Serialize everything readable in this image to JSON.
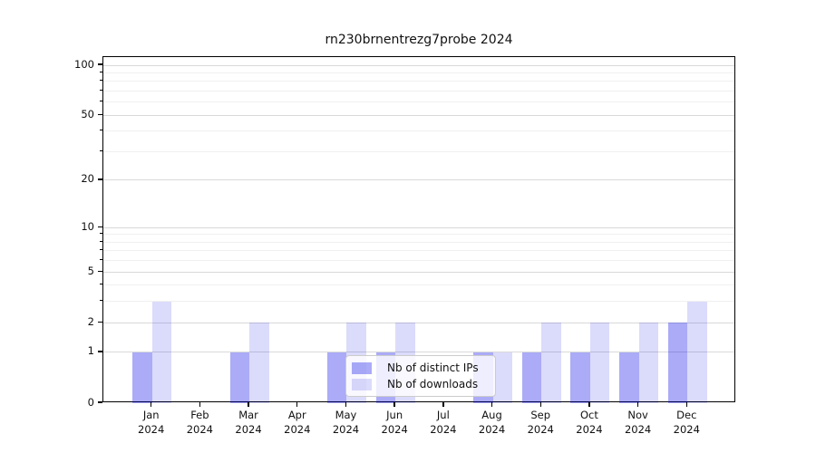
{
  "chart_data": {
    "type": "bar",
    "title": "rn230brnentrezg7probe 2024",
    "categories": [
      "Jan",
      "Feb",
      "Mar",
      "Apr",
      "May",
      "Jun",
      "Jul",
      "Aug",
      "Sep",
      "Oct",
      "Nov",
      "Dec"
    ],
    "x_tick_second_line": "2024",
    "series": [
      {
        "name": "Nb of distinct IPs",
        "color": "#0000E654",
        "values": [
          1,
          0,
          1,
          0,
          1,
          1,
          0,
          1,
          1,
          1,
          1,
          2
        ]
      },
      {
        "name": "Nb of downloads",
        "color": "#0000E624",
        "values": [
          3,
          0,
          2,
          0,
          2,
          2,
          0,
          1,
          2,
          2,
          2,
          3
        ]
      }
    ],
    "yscale": "log1p",
    "ylim": [
      0,
      112
    ],
    "y_major_ticks": [
      0,
      1,
      2,
      5,
      10,
      20,
      50,
      100
    ],
    "y_minor_ticks": [
      3,
      4,
      6,
      7,
      8,
      9,
      30,
      40,
      60,
      70,
      80,
      90
    ],
    "grid": "horizontal, major and minor, on",
    "legend_position": "lower center"
  },
  "colors": {
    "major_grid": "#d9d9d9",
    "minor_grid": "#f0f0f0",
    "axis": "#000000",
    "background": "#ffffff",
    "text": "#111111"
  }
}
